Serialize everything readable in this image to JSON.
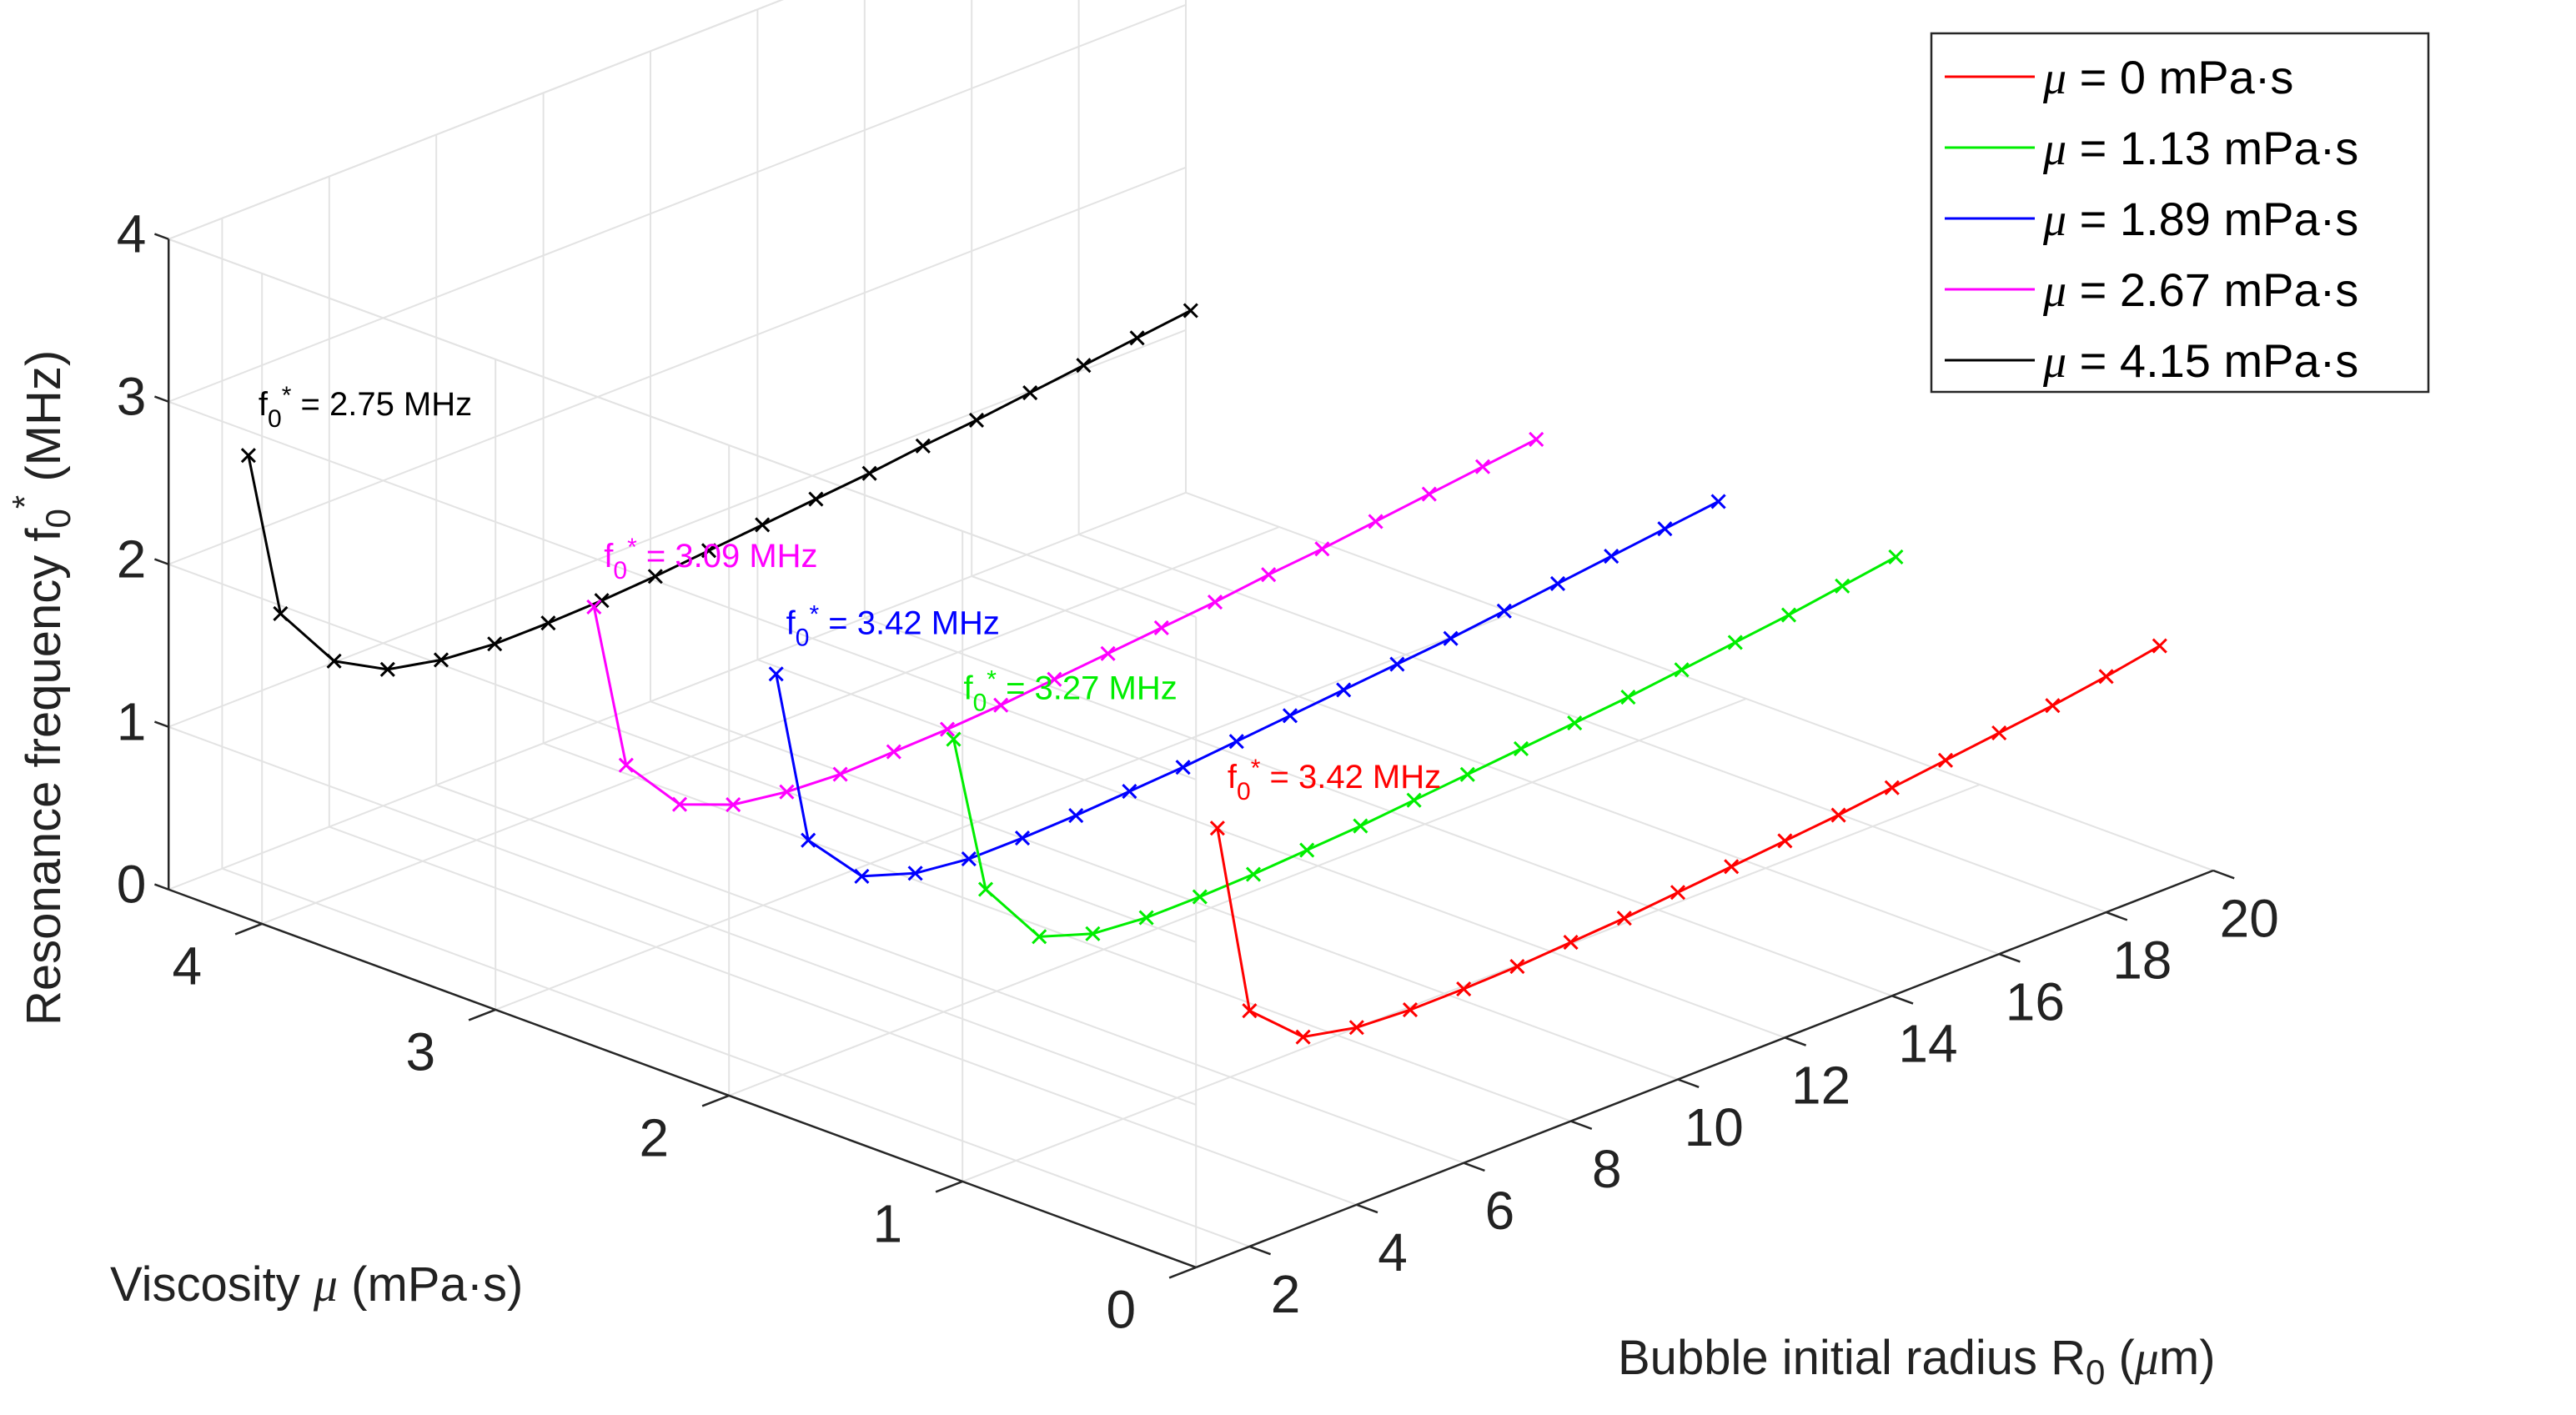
{
  "chart_data": {
    "type": "line",
    "view": "3d",
    "x_label": {
      "text": "Bubble initial radius R",
      "sub": "0",
      "tail_pre": " (",
      "mu": "μ",
      "tail_post": "m)"
    },
    "y_label": {
      "text": "Viscosity ",
      "mu": "μ",
      "tail": " (mPa·s)"
    },
    "z_label": {
      "text": "Resonance frequency f",
      "sub": "0",
      "sup": "*",
      "tail": " (MHz)"
    },
    "x_ticks": [
      2,
      4,
      6,
      8,
      10,
      12,
      14,
      16,
      18,
      20
    ],
    "y_ticks": [
      0,
      1,
      2,
      3,
      4
    ],
    "z_ticks": [
      0,
      1,
      2,
      3,
      4
    ],
    "xlim": [
      1,
      20
    ],
    "ylim": [
      0,
      4.4
    ],
    "zlim": [
      0,
      4
    ],
    "grid": true,
    "legend_position": "top-right",
    "x": [
      1.4,
      2,
      3,
      4,
      5,
      6,
      7,
      8,
      9,
      10,
      11,
      12,
      13,
      14,
      15,
      16,
      17,
      18,
      19
    ],
    "series": [
      {
        "name": "μ = 0 mPa·s",
        "mu_symbol": "μ",
        "legend_rest": " = 0 mPa·s",
        "viscosity": 0,
        "color": "#ff0000",
        "z": [
          2.65,
          1.45,
          1.16,
          1.09,
          1.07,
          1.07,
          1.08,
          1.1,
          1.12,
          1.15,
          1.18,
          1.21,
          1.24,
          1.28,
          1.32,
          1.36,
          1.4,
          1.45,
          1.51
        ],
        "annotation": {
          "prefix": "f",
          "sub": "0",
          "sup": "*",
          "text": " = 3.42 MHz"
        }
      },
      {
        "name": "μ = 1.13 mPa·s",
        "mu_symbol": "μ",
        "legend_rest": " = 1.13 mPa·s",
        "viscosity": 1.13,
        "color": "#00ee00",
        "z": [
          2.6,
          1.6,
          1.18,
          1.07,
          1.04,
          1.04,
          1.05,
          1.07,
          1.09,
          1.12,
          1.15,
          1.18,
          1.21,
          1.24,
          1.28,
          1.32,
          1.36,
          1.41,
          1.46
        ],
        "annotation": {
          "prefix": "f",
          "sub": "0",
          "sup": "*",
          "text": " = 3.27 MHz"
        }
      },
      {
        "name": "μ = 1.89 mPa·s",
        "mu_symbol": "μ",
        "legend_rest": " = 1.89 mPa·s",
        "viscosity": 1.89,
        "color": "#0000ff",
        "z": [
          2.6,
          1.5,
          1.15,
          1.04,
          1.0,
          1.0,
          1.01,
          1.03,
          1.05,
          1.08,
          1.11,
          1.14,
          1.17,
          1.2,
          1.24,
          1.28,
          1.32,
          1.36,
          1.4
        ],
        "annotation": {
          "prefix": "f",
          "sub": "0",
          "sup": "*",
          "text": " = 3.42 MHz"
        }
      },
      {
        "name": "μ = 2.67 mPa·s",
        "mu_symbol": "μ",
        "legend_rest": " = 2.67 mPa·s",
        "viscosity": 2.67,
        "color": "#ff00ff",
        "z": [
          2.6,
          1.55,
          1.18,
          1.05,
          1.0,
          0.98,
          0.99,
          1.0,
          1.02,
          1.05,
          1.08,
          1.11,
          1.14,
          1.18,
          1.21,
          1.25,
          1.29,
          1.33,
          1.37
        ],
        "annotation": {
          "prefix": "f",
          "sub": "0",
          "sup": "*",
          "text": " = 3.09 MHz"
        }
      },
      {
        "name": "μ = 4.15 mPa·s",
        "mu_symbol": "μ",
        "legend_rest": " = 4.15 mPa·s",
        "viscosity": 4.15,
        "color": "#000000",
        "z": [
          2.75,
          1.7,
          1.28,
          1.1,
          1.03,
          1.0,
          1.0,
          1.01,
          1.03,
          1.06,
          1.09,
          1.12,
          1.15,
          1.19,
          1.22,
          1.26,
          1.3,
          1.34,
          1.38
        ],
        "annotation": {
          "prefix": "f",
          "sub": "0",
          "sup": "*",
          "text": " = 2.75 MHz"
        }
      }
    ]
  }
}
